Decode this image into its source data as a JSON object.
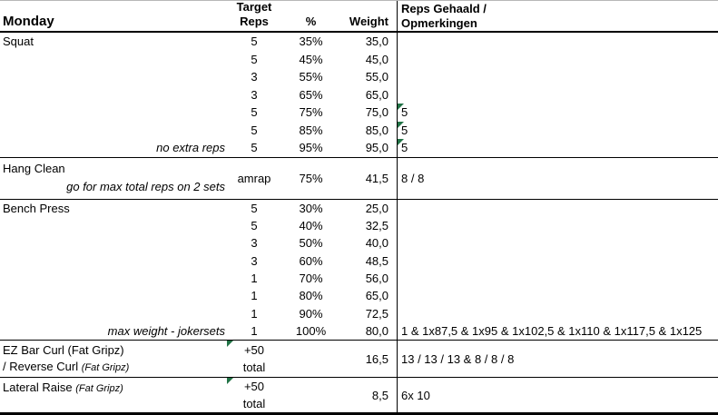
{
  "colors": {
    "flag_green": "#217346",
    "grid_dark": "#000000",
    "grid_light": "#b8b8b8"
  },
  "header": {
    "day": "Monday",
    "target_line1": "Target",
    "target_line2": "Reps",
    "percent": "%",
    "weight": "Weight",
    "notes_line1": "Reps Gehaald /",
    "notes_line2": "Opmerkingen"
  },
  "squat": {
    "name": "Squat",
    "last_row_note": "no extra reps",
    "rows": [
      {
        "reps": "5",
        "pct": "35%",
        "wt": "35,0",
        "result": ""
      },
      {
        "reps": "5",
        "pct": "45%",
        "wt": "45,0",
        "result": ""
      },
      {
        "reps": "3",
        "pct": "55%",
        "wt": "55,0",
        "result": ""
      },
      {
        "reps": "3",
        "pct": "65%",
        "wt": "65,0",
        "result": ""
      },
      {
        "reps": "5",
        "pct": "75%",
        "wt": "75,0",
        "result": "5"
      },
      {
        "reps": "5",
        "pct": "85%",
        "wt": "85,0",
        "result": "5"
      },
      {
        "reps": "5",
        "pct": "95%",
        "wt": "95,0",
        "result": "5"
      }
    ]
  },
  "hang_clean": {
    "name": "Hang Clean",
    "note": "go for max total reps on 2 sets",
    "reps": "amrap",
    "pct": "75%",
    "wt": "41,5",
    "result": "8 / 8"
  },
  "bench_press": {
    "name": "Bench Press",
    "last_row_note": "max weight - jokersets",
    "rows": [
      {
        "reps": "5",
        "pct": "30%",
        "wt": "25,0",
        "result": ""
      },
      {
        "reps": "5",
        "pct": "40%",
        "wt": "32,5",
        "result": ""
      },
      {
        "reps": "3",
        "pct": "50%",
        "wt": "40,0",
        "result": ""
      },
      {
        "reps": "3",
        "pct": "60%",
        "wt": "48,5",
        "result": ""
      },
      {
        "reps": "1",
        "pct": "70%",
        "wt": "56,0",
        "result": ""
      },
      {
        "reps": "1",
        "pct": "80%",
        "wt": "65,0",
        "result": ""
      },
      {
        "reps": "1",
        "pct": "90%",
        "wt": "72,5",
        "result": ""
      },
      {
        "reps": "1",
        "pct": "100%",
        "wt": "80,0",
        "result": "1 & 1x87,5 & 1x95 & 1x102,5 & 1x110 & 1x117,5 & 1x125"
      }
    ]
  },
  "ez_curl": {
    "name_line1": "EZ Bar Curl (Fat Gripz)",
    "name_line2_main": "/ Reverse Curl ",
    "name_line2_small": "(Fat Gripz)",
    "reps_line1": "+50",
    "reps_line2": "total",
    "wt": "16,5",
    "result": "13 / 13 / 13 & 8 / 8 / 8"
  },
  "lateral_raise": {
    "name_main": "Lateral Raise ",
    "name_small": "(Fat Gripz)",
    "reps_line1": "+50",
    "reps_line2": "total",
    "wt": "8,5",
    "result": "6x 10"
  }
}
